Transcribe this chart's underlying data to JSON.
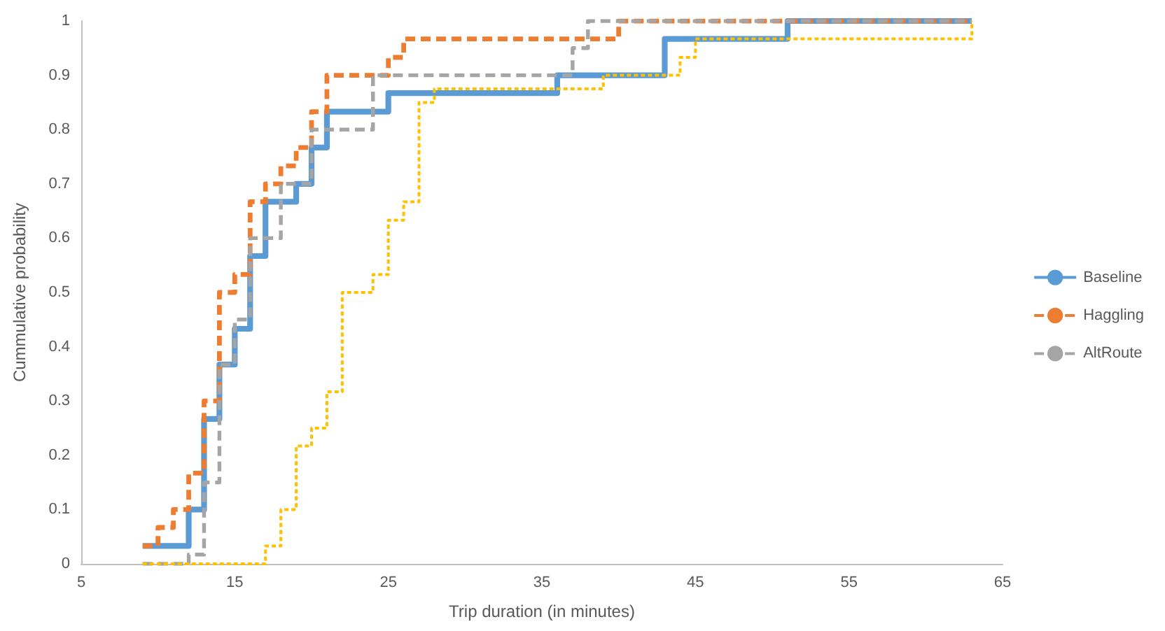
{
  "chart_data": {
    "type": "step",
    "xlabel": "Trip duration (in minutes)",
    "ylabel": "Cummulative probability",
    "xlim": [
      5,
      65
    ],
    "xticks": [
      5,
      15,
      25,
      35,
      45,
      55,
      65
    ],
    "ylim": [
      0,
      1
    ],
    "yticks": [
      0,
      0.1,
      0.2,
      0.3,
      0.4,
      0.5,
      0.6,
      0.7,
      0.8,
      0.9,
      1
    ],
    "grid": false,
    "legend": "right",
    "marker": "none",
    "series": [
      {
        "name": "Baseline",
        "color": "#5b9bd5",
        "line_style": "solid",
        "x": [
          9,
          12,
          13,
          14,
          15,
          16,
          17,
          19,
          20,
          21,
          25,
          36,
          43,
          51,
          63
        ],
        "values": [
          0.033,
          0.1,
          0.267,
          0.367,
          0.433,
          0.567,
          0.667,
          0.7,
          0.767,
          0.833,
          0.867,
          0.9,
          0.967,
          1,
          1
        ]
      },
      {
        "name": "Haggling",
        "color": "#ed7d31",
        "line_style": "dashed",
        "x": [
          9,
          10,
          11,
          12,
          13,
          14,
          15,
          16,
          17,
          18,
          19,
          20,
          21,
          25,
          26,
          40,
          63
        ],
        "values": [
          0.033,
          0.067,
          0.1,
          0.167,
          0.3,
          0.5,
          0.533,
          0.667,
          0.7,
          0.733,
          0.767,
          0.833,
          0.9,
          0.933,
          0.967,
          1,
          1
        ]
      },
      {
        "name": "AltRoute",
        "color": "#a5a5a5",
        "line_style": "dashed",
        "x": [
          9,
          12,
          13,
          14,
          15,
          16,
          18,
          20,
          24,
          37,
          38,
          63
        ],
        "values": [
          0,
          0.017,
          0.15,
          0.367,
          0.45,
          0.6,
          0.7,
          0.8,
          0.9,
          0.95,
          1,
          1
        ]
      },
      {
        "color": "#ffc000",
        "line_style": "dotted",
        "x": [
          9,
          17,
          18,
          19,
          20,
          21,
          22,
          24,
          25,
          26,
          27,
          28,
          39,
          44,
          45,
          63
        ],
        "values": [
          0,
          0.033,
          0.1,
          0.217,
          0.25,
          0.317,
          0.5,
          0.533,
          0.633,
          0.667,
          0.85,
          0.875,
          0.9,
          0.933,
          0.967,
          1
        ]
      }
    ]
  }
}
